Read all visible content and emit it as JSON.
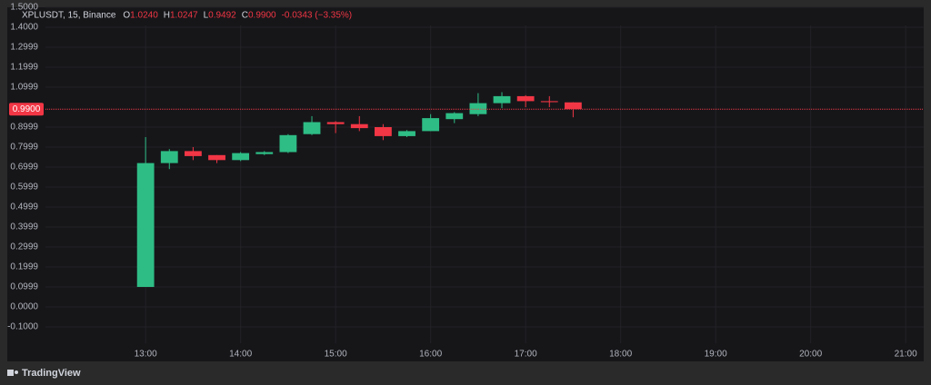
{
  "chart_data": {
    "type": "candlestick",
    "title": "XPLUSDT, 15, Binance",
    "legend": [
      {
        "label": "O",
        "value": "1.0240"
      },
      {
        "label": "H",
        "value": "1.0247"
      },
      {
        "label": "L",
        "value": "0.9492"
      },
      {
        "label": "C",
        "value": "0.9900"
      }
    ],
    "change": "-0.0343 (−3.35%)",
    "x": [
      13,
      13.25,
      13.5,
      13.75,
      14,
      14.25,
      14.5,
      14.75,
      15,
      15.25,
      15.5,
      15.75,
      16,
      16.25,
      16.5,
      16.75,
      17,
      17.25,
      17.5
    ],
    "open": [
      0.1,
      0.72,
      0.78,
      0.76,
      0.735,
      0.765,
      0.775,
      0.865,
      0.925,
      0.915,
      0.9,
      0.855,
      0.88,
      0.94,
      0.965,
      1.02,
      1.055,
      1.03,
      1.024
    ],
    "high": [
      0.85,
      0.79,
      0.8,
      0.76,
      0.775,
      0.78,
      0.865,
      0.955,
      0.93,
      0.955,
      0.915,
      0.885,
      0.965,
      0.975,
      1.07,
      1.075,
      1.06,
      1.055,
      1.0247
    ],
    "low": [
      0.1,
      0.69,
      0.735,
      0.72,
      0.73,
      0.76,
      0.77,
      0.86,
      0.87,
      0.88,
      0.835,
      0.85,
      0.88,
      0.92,
      0.955,
      0.995,
      1.0,
      1.0,
      0.9492
    ],
    "close": [
      0.72,
      0.78,
      0.755,
      0.735,
      0.77,
      0.775,
      0.86,
      0.925,
      0.915,
      0.895,
      0.855,
      0.88,
      0.945,
      0.97,
      1.02,
      1.055,
      1.03,
      1.025,
      0.99
    ],
    "up_color": "#2ebd85",
    "down_color": "#f23645",
    "xlim": [
      11.544,
      21.19
    ],
    "xticks": [
      {
        "value": 13,
        "label": "13:00"
      },
      {
        "value": 14,
        "label": "14:00"
      },
      {
        "value": 15,
        "label": "15:00"
      },
      {
        "value": 16,
        "label": "16:00"
      },
      {
        "value": 17,
        "label": "17:00"
      },
      {
        "value": 18,
        "label": "18:00"
      },
      {
        "value": 19,
        "label": "19:00"
      },
      {
        "value": 20,
        "label": "20:00"
      },
      {
        "value": 21,
        "label": "21:00"
      }
    ],
    "ylim": [
      -0.2727,
      1.5
    ],
    "yticks": [
      {
        "value": 1.5,
        "label": "1.5000"
      },
      {
        "value": 1.4,
        "label": "1.4000"
      },
      1.2999,
      1.1999,
      1.0999,
      0.8999,
      0.7999,
      0.6999,
      0.5999,
      0.4999,
      0.3999,
      0.2999,
      0.1999,
      0.0999,
      {
        "value": 0,
        "label": "0.0000"
      },
      {
        "value": -0.1,
        "label": "-0.1000"
      }
    ],
    "price_line": {
      "value": 0.99,
      "label": "0.9900"
    },
    "grid": true
  },
  "footer": {
    "brand": "TradingView"
  }
}
